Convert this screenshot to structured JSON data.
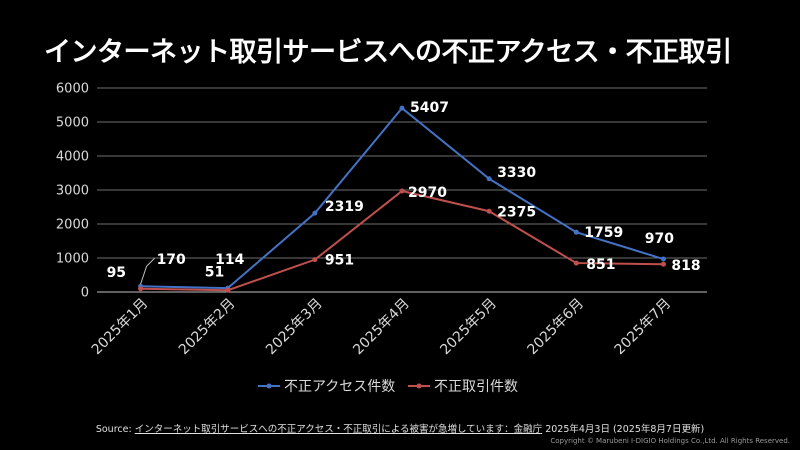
{
  "title": "インターネット取引サービスへの不正アクセス・不正取引",
  "chart_data": {
    "type": "line",
    "categories": [
      "2025年1月",
      "2025年2月",
      "2025年3月",
      "2025年4月",
      "2025年5月",
      "2025年6月",
      "2025年7月"
    ],
    "series": [
      {
        "name": "不正アクセス件数",
        "color": "#4472c4",
        "values": [
          170,
          114,
          2319,
          5407,
          3330,
          1759,
          970
        ]
      },
      {
        "name": "不正取引件数",
        "color": "#c0504d",
        "values": [
          95,
          51,
          951,
          2970,
          2375,
          851,
          818
        ]
      }
    ],
    "ylim": [
      0,
      6000
    ],
    "yticks": [
      0,
      1000,
      2000,
      3000,
      4000,
      5000,
      6000
    ],
    "grid": true,
    "legend_position": "bottom"
  },
  "source": {
    "prefix": "Source: ",
    "link": "インターネット取引サービスへの不正アクセス・不正取引による被害が急増しています：金融庁",
    "suffix": " 2025年4月3日 (2025年8月7日更新)"
  },
  "copyright": "Copyright © Marubeni I-DIGIO Holdings Co.,Ltd. All Rights Reserved."
}
